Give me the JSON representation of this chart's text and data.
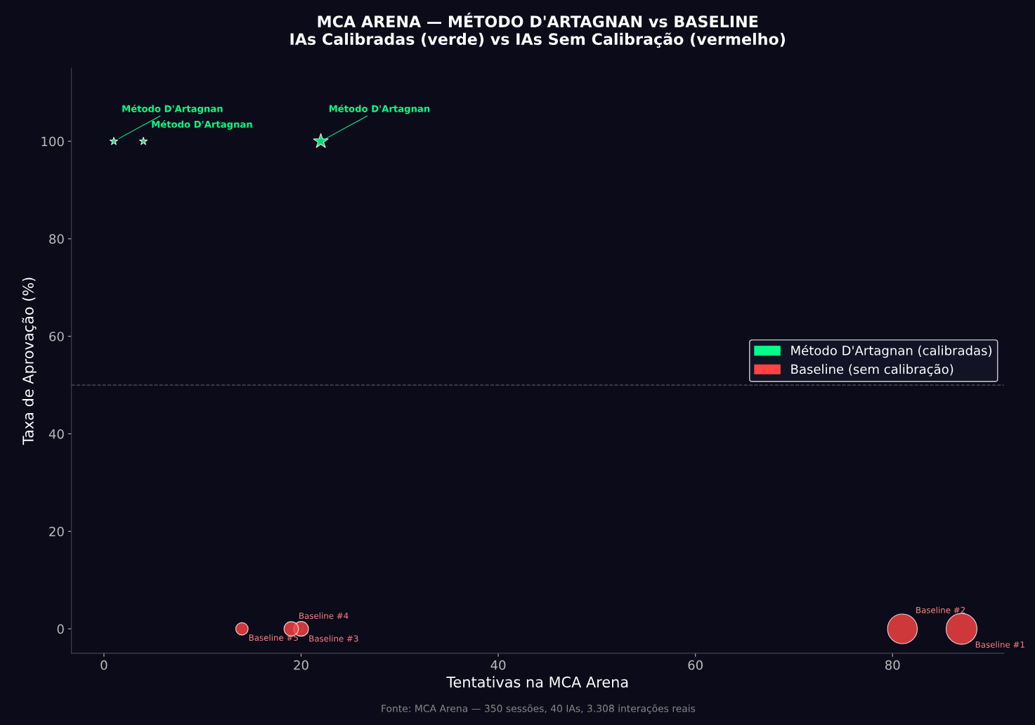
{
  "chart_data": {
    "type": "bubble",
    "title": "MCA ARENA — MÉTODO D'ARTAGNAN vs BASELINE\nIAs Calibradas (verde) vs IAs Sem Calibração (vermelho)",
    "xlabel": "Tentativas na MCA Arena",
    "ylabel": "Taxa de Aprovação (%)",
    "series": [
      {
        "name": "Método D'Artagnan (calibradas)",
        "color": "#00ff88",
        "marker": "star",
        "x": [
          1,
          4,
          22
        ],
        "values": [
          100,
          100,
          100
        ],
        "sizes": [
          0.025,
          0.025,
          0.09
        ]
      },
      {
        "name": "Baseline (sem calibração)",
        "color": "#ff4444",
        "marker": "circle",
        "x": [
          87,
          81,
          20,
          19,
          14
        ],
        "values": [
          0,
          0,
          0,
          0,
          0
        ],
        "sizes": [
          1,
          0.93,
          0.23,
          0.22,
          0.16
        ]
      }
    ],
    "xlim": [
      -3.3,
      91.3
    ],
    "ylim": [
      -5,
      115
    ],
    "xticks": [
      0,
      20,
      40,
      60,
      80
    ],
    "yticks": [
      0,
      20,
      40,
      60,
      80,
      100
    ],
    "ref_lines": [
      {
        "axis": "y",
        "value": 50,
        "color": "#555566",
        "line_style": "dashed"
      }
    ],
    "legend": "right",
    "grid": false,
    "annotations": [
      {
        "text": "Método D'Artagnan",
        "x": 1,
        "y": 100
      },
      {
        "text": "Método D'Artagnan",
        "x": 4,
        "y": 100
      },
      {
        "text": "Método D'Artagnan",
        "x": 22,
        "y": 100
      },
      {
        "text": "Baseline #1",
        "x": 87,
        "y": 0
      },
      {
        "text": "Baseline #2",
        "x": 81,
        "y": 0
      },
      {
        "text": "Baseline #3",
        "x": 20,
        "y": 0
      },
      {
        "text": "Baseline #4",
        "x": 19,
        "y": 0
      },
      {
        "text": "Baseline #5",
        "x": 14,
        "y": 0
      },
      "Fonte: MCA Arena — 350 sessões, 40 IAs, 3.308 interações reais"
    ]
  }
}
